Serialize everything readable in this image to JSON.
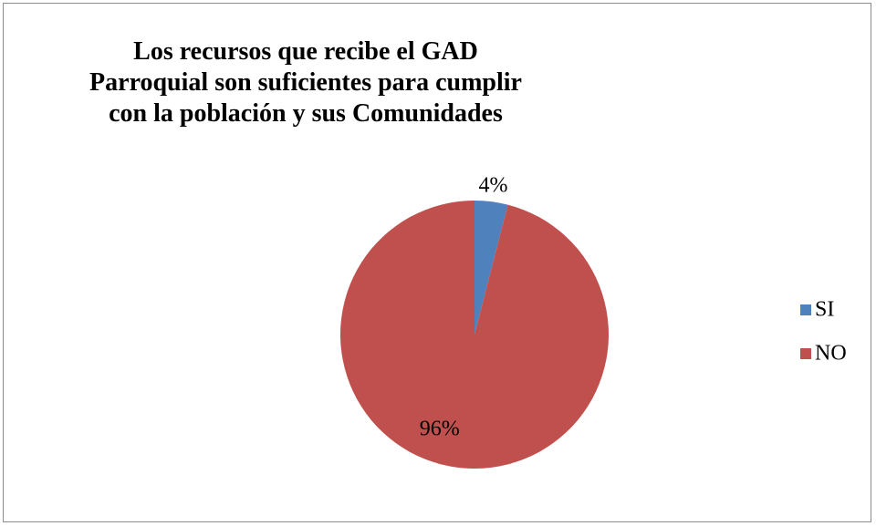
{
  "chart_data": {
    "type": "pie",
    "title": "Los recursos que recibe el GAD Parroquial son suficientes para cumplir con la población y sus Comunidades",
    "categories": [
      "SI",
      "NO"
    ],
    "values": [
      4,
      96
    ],
    "value_labels": [
      "4%",
      "96%"
    ],
    "colors": [
      "#4f81bd",
      "#c0504d"
    ],
    "legend": "right"
  }
}
